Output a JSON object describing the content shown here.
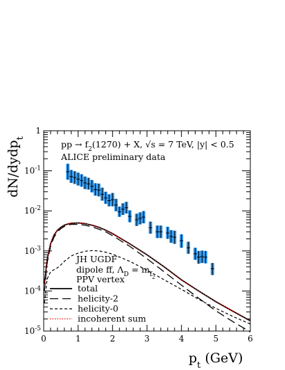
{
  "chart_data": {
    "type": "line",
    "title": "",
    "xlabel": "p_t (GeV)",
    "ylabel": "dN/dydp_t",
    "y_scale": "log",
    "xlim": [
      0,
      6
    ],
    "ylim": [
      1e-05,
      1
    ],
    "x_ticks": [
      "0",
      "1",
      "2",
      "3",
      "4",
      "5",
      "6"
    ],
    "y_ticks": [
      "10^-5",
      "10^-4",
      "10^-3",
      "10^-2",
      "10^-1",
      "1"
    ],
    "grid": false,
    "annotations": {
      "process": "pp → f_2(1270) + X,  √s = 7 TeV,  |y| < 0.5",
      "data_label": "ALICE preliminary data",
      "model_line1": "JH UGDF",
      "model_line2": "dipole ff, Λ_D = m_f2",
      "model_line3": "PPV vertex"
    },
    "legend_placement": "bottom-left",
    "series": [
      {
        "name": "total",
        "style": "solid",
        "color": "#000000",
        "x": [
          0.02,
          0.1,
          0.2,
          0.3,
          0.4,
          0.5,
          0.6,
          0.7,
          0.8,
          1.0,
          1.2,
          1.4,
          1.6,
          1.8,
          2.0,
          2.5,
          3.0,
          3.5,
          4.0,
          4.5,
          5.0,
          5.5,
          6.0
        ],
        "y": [
          0.00015,
          0.0006,
          0.0015,
          0.0025,
          0.0033,
          0.0039,
          0.0044,
          0.0047,
          0.0049,
          0.005,
          0.0048,
          0.0044,
          0.0039,
          0.0033,
          0.0027,
          0.0015,
          0.0008,
          0.0004,
          0.00019,
          0.0001,
          5.4e-05,
          3.1e-05,
          1.8e-05
        ]
      },
      {
        "name": "helicity-2",
        "style": "long-dash",
        "color": "#000000",
        "x": [
          0.02,
          0.1,
          0.2,
          0.3,
          0.4,
          0.5,
          0.6,
          0.7,
          0.8,
          1.0,
          1.2,
          1.4,
          1.6,
          1.8,
          2.0,
          2.5,
          3.0,
          3.5,
          4.0,
          4.5,
          5.0,
          5.5,
          6.0
        ],
        "y": [
          0.0001,
          0.0005,
          0.0013,
          0.0022,
          0.003,
          0.0036,
          0.0041,
          0.0044,
          0.0046,
          0.0046,
          0.0044,
          0.004,
          0.0035,
          0.003,
          0.0024,
          0.0013,
          0.00064,
          0.0003,
          0.00014,
          6.6e-05,
          3.2e-05,
          1.7e-05,
          9.5e-06
        ]
      },
      {
        "name": "helicity-0",
        "style": "short-dash",
        "color": "#000000",
        "x": [
          0.02,
          0.1,
          0.2,
          0.3,
          0.4,
          0.5,
          0.6,
          0.8,
          1.0,
          1.2,
          1.4,
          1.6,
          1.8,
          2.0,
          2.5,
          3.0,
          3.5,
          4.0,
          4.5,
          5.0,
          5.5,
          6.0
        ],
        "y": [
          5e-05,
          0.0002,
          0.0003,
          0.00034,
          0.00038,
          0.00045,
          0.00055,
          0.00075,
          0.00088,
          0.00098,
          0.00102,
          0.001,
          0.00093,
          0.00083,
          0.00055,
          0.00033,
          0.00019,
          0.00011,
          6.2e-05,
          3.7e-05,
          2.3e-05,
          1.5e-05
        ]
      },
      {
        "name": "incoherent sum",
        "style": "dotted",
        "color": "#ff0000",
        "x": [
          0.02,
          0.1,
          0.2,
          0.3,
          0.4,
          0.5,
          0.6,
          0.7,
          0.8,
          1.0,
          1.2,
          1.4,
          1.6,
          1.8,
          2.0,
          2.5,
          3.0,
          3.5,
          4.0,
          4.5,
          5.0,
          5.5,
          6.0
        ],
        "y": [
          0.00015,
          0.0006,
          0.0015,
          0.0025,
          0.0033,
          0.0039,
          0.0044,
          0.0047,
          0.0049,
          0.005,
          0.0048,
          0.0044,
          0.0039,
          0.0033,
          0.0027,
          0.0015,
          0.0008,
          0.0004,
          0.00019,
          0.0001,
          5.4e-05,
          3.1e-05,
          1.8e-05
        ]
      }
    ],
    "data_points": {
      "name": "ALICE preliminary data",
      "color": "#3399ee",
      "x": [
        0.7,
        0.8,
        0.9,
        1.0,
        1.1,
        1.2,
        1.3,
        1.4,
        1.5,
        1.6,
        1.7,
        1.8,
        1.9,
        2.0,
        2.1,
        2.2,
        2.3,
        2.4,
        2.5,
        2.7,
        2.8,
        2.9,
        3.1,
        3.3,
        3.4,
        3.6,
        3.7,
        3.8,
        4.0,
        4.2,
        4.4,
        4.5,
        4.6,
        4.7,
        4.9
      ],
      "y": [
        0.095,
        0.072,
        0.068,
        0.062,
        0.057,
        0.05,
        0.047,
        0.041,
        0.034,
        0.033,
        0.026,
        0.021,
        0.018,
        0.019,
        0.014,
        0.0095,
        0.011,
        0.012,
        0.0073,
        0.006,
        0.0065,
        0.007,
        0.0038,
        0.003,
        0.003,
        0.0028,
        0.0023,
        0.0022,
        0.0018,
        0.0012,
        0.00085,
        0.0007,
        0.00072,
        0.0007,
        0.00036
      ],
      "ylow": [
        0.06,
        0.05,
        0.047,
        0.043,
        0.04,
        0.035,
        0.034,
        0.029,
        0.024,
        0.023,
        0.018,
        0.015,
        0.013,
        0.013,
        0.0098,
        0.0071,
        0.0079,
        0.0086,
        0.0052,
        0.0042,
        0.0046,
        0.0049,
        0.0027,
        0.0021,
        0.0021,
        0.002,
        0.0016,
        0.0015,
        0.0012,
        0.00085,
        0.0006,
        0.00048,
        0.0005,
        0.00049,
        0.00025
      ],
      "yhigh": [
        0.15,
        0.105,
        0.098,
        0.09,
        0.082,
        0.072,
        0.067,
        0.059,
        0.049,
        0.048,
        0.038,
        0.03,
        0.026,
        0.028,
        0.02,
        0.0128,
        0.0155,
        0.0168,
        0.0103,
        0.0085,
        0.0092,
        0.0099,
        0.0054,
        0.0043,
        0.0043,
        0.004,
        0.0033,
        0.0032,
        0.0026,
        0.0017,
        0.0012,
        0.001,
        0.00102,
        0.001,
        0.0005
      ],
      "xerr": 0.05
    }
  }
}
